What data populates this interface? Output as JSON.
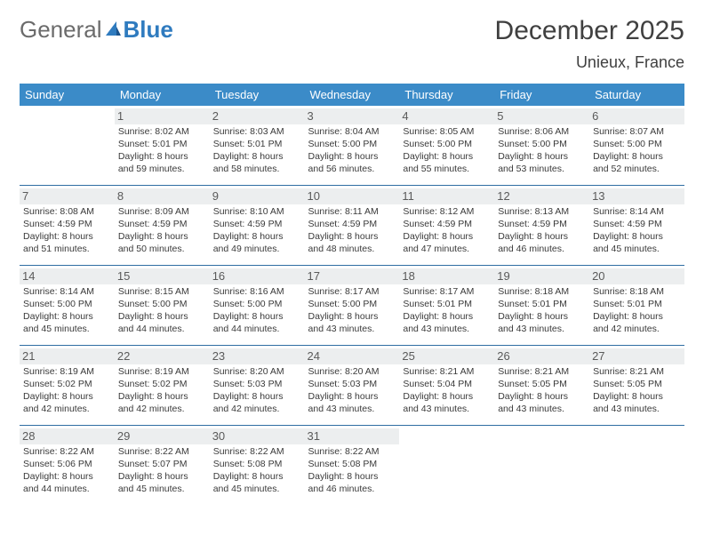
{
  "brand": {
    "part1": "General",
    "part2": "Blue"
  },
  "title": "December 2025",
  "location": "Unieux, France",
  "colors": {
    "header_bg": "#3b8bc8",
    "row_divider": "#2f6ea3",
    "daynum_bg": "#eceeef",
    "logo_gray": "#6b6b6b",
    "logo_blue": "#2f7bbf"
  },
  "day_names": [
    "Sunday",
    "Monday",
    "Tuesday",
    "Wednesday",
    "Thursday",
    "Friday",
    "Saturday"
  ],
  "weeks": [
    [
      null,
      {
        "n": "1",
        "sr": "8:02 AM",
        "ss": "5:01 PM",
        "dl": "8 hours and 59 minutes."
      },
      {
        "n": "2",
        "sr": "8:03 AM",
        "ss": "5:01 PM",
        "dl": "8 hours and 58 minutes."
      },
      {
        "n": "3",
        "sr": "8:04 AM",
        "ss": "5:00 PM",
        "dl": "8 hours and 56 minutes."
      },
      {
        "n": "4",
        "sr": "8:05 AM",
        "ss": "5:00 PM",
        "dl": "8 hours and 55 minutes."
      },
      {
        "n": "5",
        "sr": "8:06 AM",
        "ss": "5:00 PM",
        "dl": "8 hours and 53 minutes."
      },
      {
        "n": "6",
        "sr": "8:07 AM",
        "ss": "5:00 PM",
        "dl": "8 hours and 52 minutes."
      }
    ],
    [
      {
        "n": "7",
        "sr": "8:08 AM",
        "ss": "4:59 PM",
        "dl": "8 hours and 51 minutes."
      },
      {
        "n": "8",
        "sr": "8:09 AM",
        "ss": "4:59 PM",
        "dl": "8 hours and 50 minutes."
      },
      {
        "n": "9",
        "sr": "8:10 AM",
        "ss": "4:59 PM",
        "dl": "8 hours and 49 minutes."
      },
      {
        "n": "10",
        "sr": "8:11 AM",
        "ss": "4:59 PM",
        "dl": "8 hours and 48 minutes."
      },
      {
        "n": "11",
        "sr": "8:12 AM",
        "ss": "4:59 PM",
        "dl": "8 hours and 47 minutes."
      },
      {
        "n": "12",
        "sr": "8:13 AM",
        "ss": "4:59 PM",
        "dl": "8 hours and 46 minutes."
      },
      {
        "n": "13",
        "sr": "8:14 AM",
        "ss": "4:59 PM",
        "dl": "8 hours and 45 minutes."
      }
    ],
    [
      {
        "n": "14",
        "sr": "8:14 AM",
        "ss": "5:00 PM",
        "dl": "8 hours and 45 minutes."
      },
      {
        "n": "15",
        "sr": "8:15 AM",
        "ss": "5:00 PM",
        "dl": "8 hours and 44 minutes."
      },
      {
        "n": "16",
        "sr": "8:16 AM",
        "ss": "5:00 PM",
        "dl": "8 hours and 44 minutes."
      },
      {
        "n": "17",
        "sr": "8:17 AM",
        "ss": "5:00 PM",
        "dl": "8 hours and 43 minutes."
      },
      {
        "n": "18",
        "sr": "8:17 AM",
        "ss": "5:01 PM",
        "dl": "8 hours and 43 minutes."
      },
      {
        "n": "19",
        "sr": "8:18 AM",
        "ss": "5:01 PM",
        "dl": "8 hours and 43 minutes."
      },
      {
        "n": "20",
        "sr": "8:18 AM",
        "ss": "5:01 PM",
        "dl": "8 hours and 42 minutes."
      }
    ],
    [
      {
        "n": "21",
        "sr": "8:19 AM",
        "ss": "5:02 PM",
        "dl": "8 hours and 42 minutes."
      },
      {
        "n": "22",
        "sr": "8:19 AM",
        "ss": "5:02 PM",
        "dl": "8 hours and 42 minutes."
      },
      {
        "n": "23",
        "sr": "8:20 AM",
        "ss": "5:03 PM",
        "dl": "8 hours and 42 minutes."
      },
      {
        "n": "24",
        "sr": "8:20 AM",
        "ss": "5:03 PM",
        "dl": "8 hours and 43 minutes."
      },
      {
        "n": "25",
        "sr": "8:21 AM",
        "ss": "5:04 PM",
        "dl": "8 hours and 43 minutes."
      },
      {
        "n": "26",
        "sr": "8:21 AM",
        "ss": "5:05 PM",
        "dl": "8 hours and 43 minutes."
      },
      {
        "n": "27",
        "sr": "8:21 AM",
        "ss": "5:05 PM",
        "dl": "8 hours and 43 minutes."
      }
    ],
    [
      {
        "n": "28",
        "sr": "8:22 AM",
        "ss": "5:06 PM",
        "dl": "8 hours and 44 minutes."
      },
      {
        "n": "29",
        "sr": "8:22 AM",
        "ss": "5:07 PM",
        "dl": "8 hours and 45 minutes."
      },
      {
        "n": "30",
        "sr": "8:22 AM",
        "ss": "5:08 PM",
        "dl": "8 hours and 45 minutes."
      },
      {
        "n": "31",
        "sr": "8:22 AM",
        "ss": "5:08 PM",
        "dl": "8 hours and 46 minutes."
      },
      null,
      null,
      null
    ]
  ],
  "labels": {
    "sunrise": "Sunrise:",
    "sunset": "Sunset:",
    "daylight": "Daylight:"
  }
}
